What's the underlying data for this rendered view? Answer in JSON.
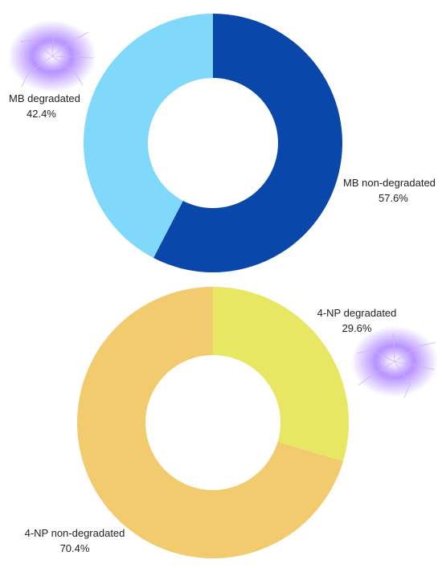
{
  "chart_data": [
    {
      "type": "pie",
      "donut": true,
      "slices": [
        {
          "label": "MB non-degradated",
          "value": 57.6,
          "value_text": "57.6%",
          "color": "#0a47ab"
        },
        {
          "label": "MB degradated",
          "value": 42.4,
          "value_text": "42.4%",
          "color": "#80d8fb"
        }
      ]
    },
    {
      "type": "pie",
      "donut": true,
      "slices": [
        {
          "label": "4-NP degradated",
          "value": 29.6,
          "value_text": "29.6%",
          "color": "#e8e764"
        },
        {
          "label": "4-NP non-degradated",
          "value": 70.4,
          "value_text": "70.4%",
          "color": "#f1cb6e"
        }
      ]
    }
  ],
  "decorations": {
    "glow_icon": "lightning-glow-icon",
    "glow_color": "#a070ff"
  }
}
